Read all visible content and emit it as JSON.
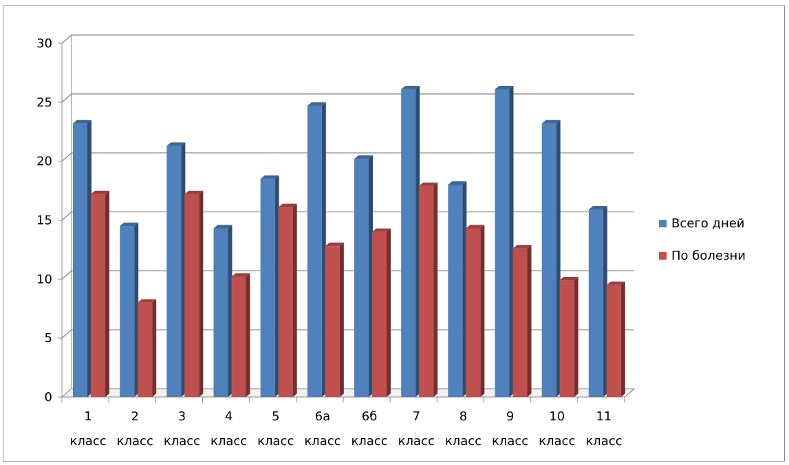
{
  "chart_data": {
    "type": "bar",
    "title": "",
    "xlabel": "",
    "ylabel": "",
    "ylim": [
      0,
      30
    ],
    "yticks": [
      0,
      5,
      10,
      15,
      20,
      25,
      30
    ],
    "grid": true,
    "style": "3d-clustered-column",
    "legend_position": "right",
    "categories": [
      [
        "1",
        "класс"
      ],
      [
        "2",
        "класс"
      ],
      [
        "3",
        "класс"
      ],
      [
        "4",
        "класс"
      ],
      [
        "5",
        "класс"
      ],
      [
        "6а",
        "класс"
      ],
      [
        "6б",
        "класс"
      ],
      [
        "7",
        "класс"
      ],
      [
        "8",
        "класс"
      ],
      [
        "9",
        "класс"
      ],
      [
        "10",
        "класс"
      ],
      [
        "11",
        "класс"
      ]
    ],
    "series": [
      {
        "name": "Всего дней",
        "color": "#4F81BD",
        "values": [
          23.2,
          14.5,
          21.3,
          14.3,
          18.5,
          24.7,
          20.2,
          26.1,
          18.0,
          26.1,
          23.2,
          15.9
        ]
      },
      {
        "name": "По болезни",
        "color": "#C0504D",
        "values": [
          17.2,
          8.0,
          17.2,
          10.2,
          16.1,
          12.8,
          14.0,
          17.9,
          14.3,
          12.6,
          9.9,
          9.5
        ]
      }
    ]
  }
}
